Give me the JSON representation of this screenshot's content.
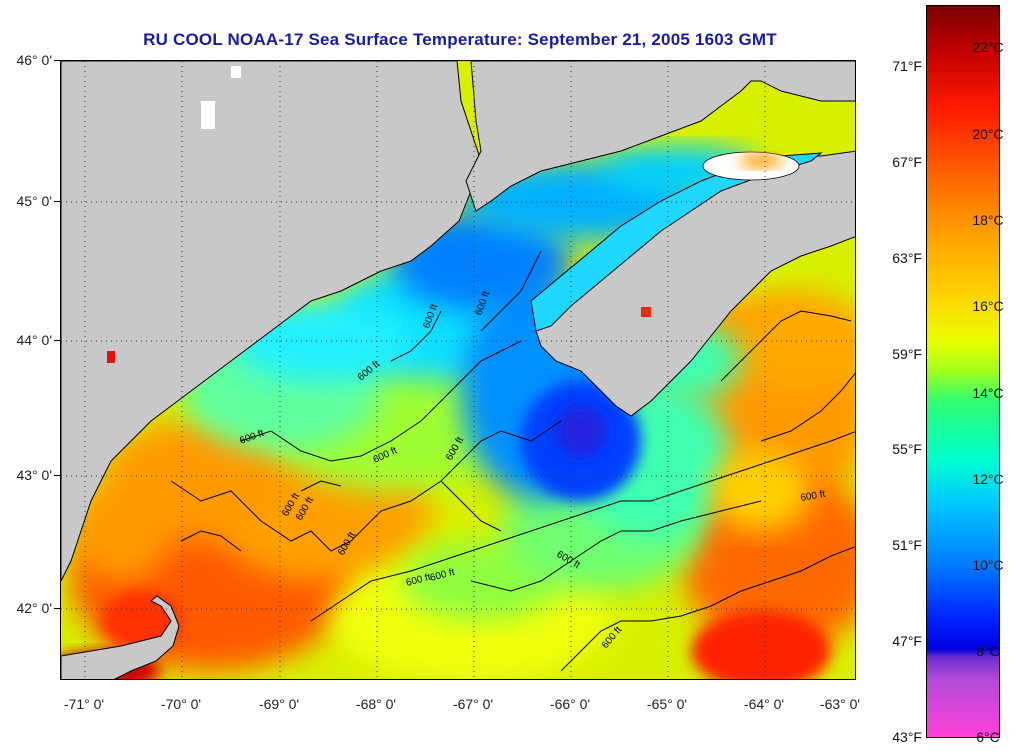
{
  "title": "RU COOL  NOAA-17  Sea Surface Temperature:  September 21, 2005 1603 GMT",
  "latitude_labels": [
    "46° 0'",
    "45° 0'",
    "44° 0'",
    "43° 0'",
    "42° 0'"
  ],
  "longitude_labels": [
    "-71° 0'",
    "-70° 0'",
    "-69° 0'",
    "-68° 0'",
    "-67° 0'",
    "-66° 0'",
    "-65° 0'",
    "-64° 0'",
    "-63° 0'"
  ],
  "colorbar": {
    "fahrenheit_labels": [
      "71°F",
      "67°F",
      "63°F",
      "59°F",
      "55°F",
      "51°F",
      "47°F",
      "43°F"
    ],
    "celsius_labels": [
      "22°C",
      "20°C",
      "18°C",
      "16°C",
      "14°C",
      "12°C",
      "10°C",
      "8°C",
      "6°C"
    ]
  },
  "isobath_labels": [
    "600 ft",
    "600 ft",
    "600 ft",
    "600 ft",
    "600 ft",
    "600 ft",
    "600 ft",
    "600 ft",
    "600 ft",
    "600 ft",
    "600 ft",
    "600 ft",
    "600 ft",
    "600 ft"
  ],
  "colors": {
    "land": "#c8c8c8",
    "title": "#1a1aa8",
    "coast": "#000000"
  }
}
